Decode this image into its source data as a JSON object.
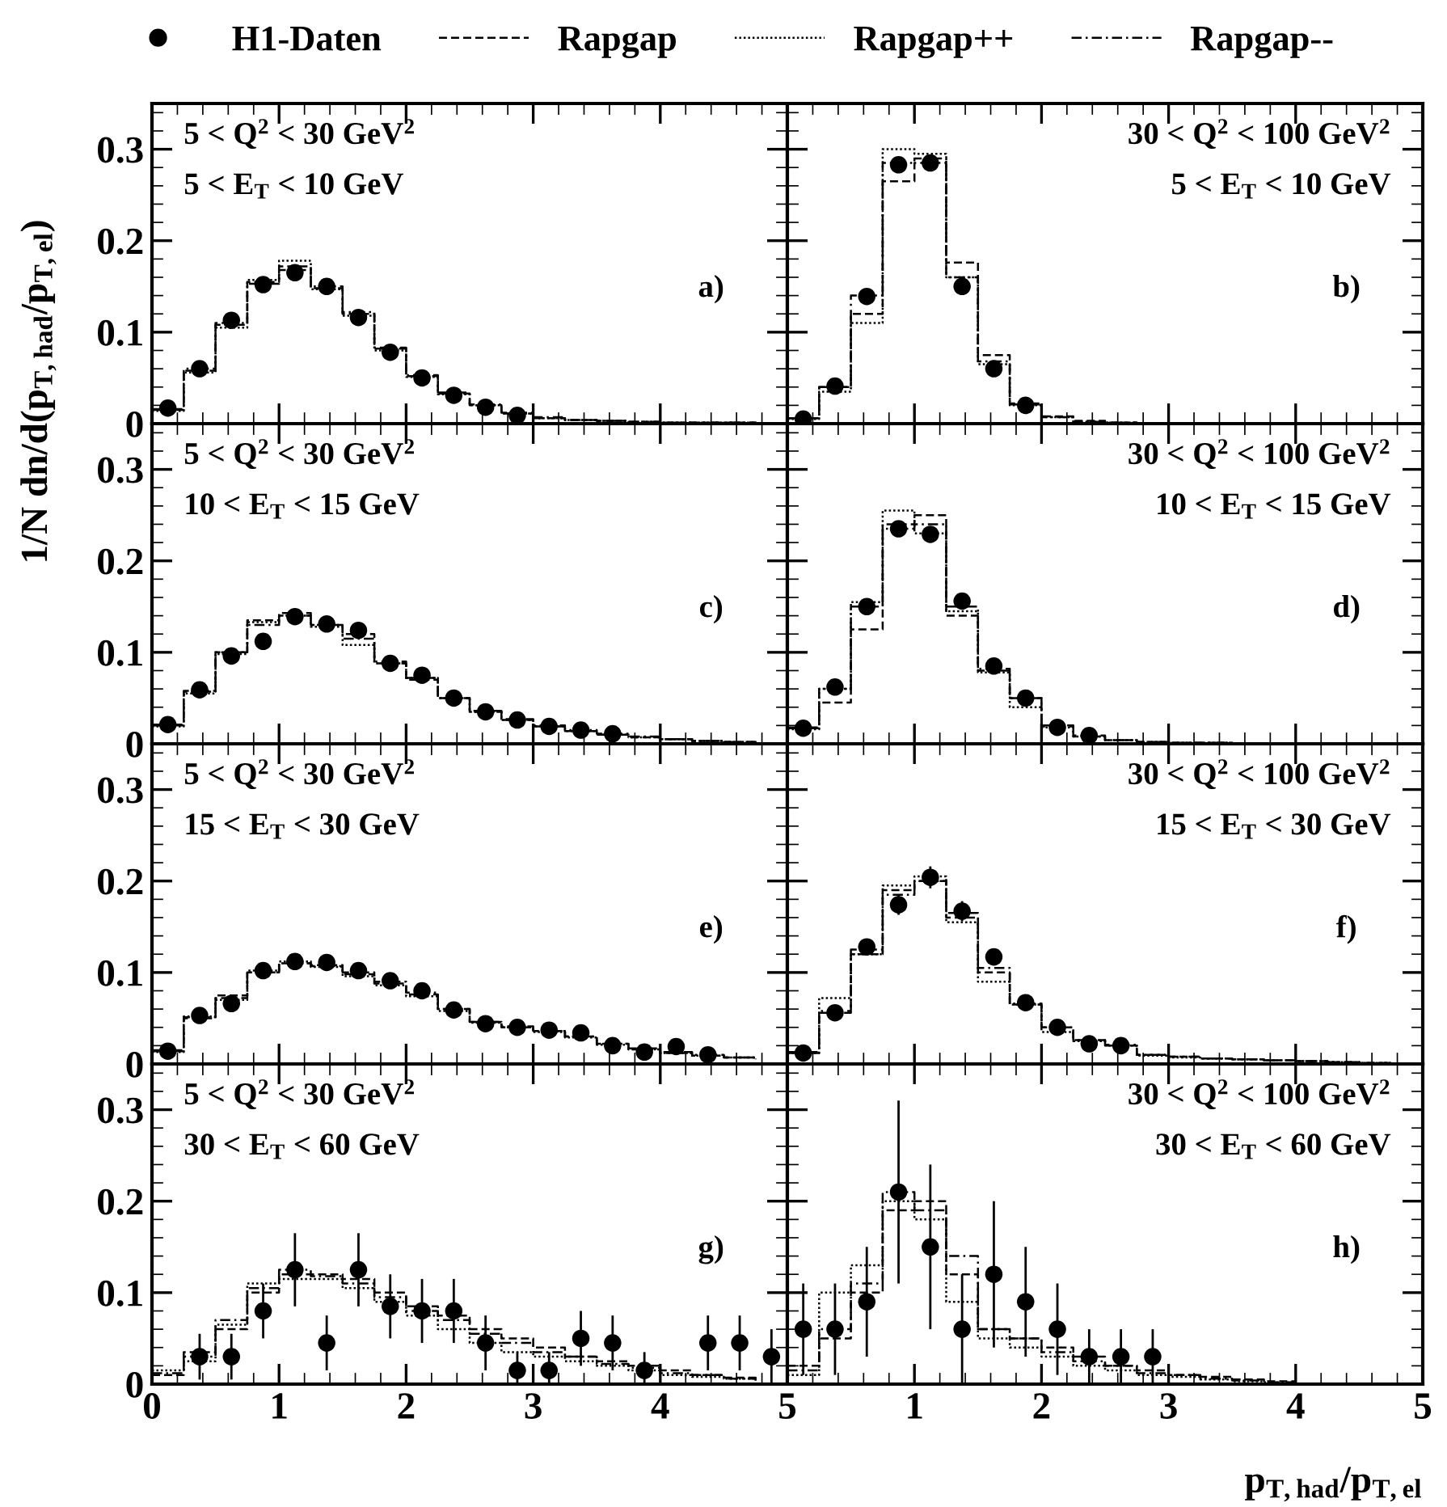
{
  "chart_data": [
    {
      "type": "step",
      "ylabel": "1/N dn/d(p$_{T,had}$/p$_{T,el}$)",
      "legend": "top",
      "annotations": [
        "5 < Q$^{2}$ < 30 GeV$^{2}$",
        "5 < E$_{T}$ < 10 GeV",
        "a)"
      ],
      "xlim": [
        0,
        5
      ],
      "ylim": [
        0,
        0.35
      ],
      "xticks": [
        0,
        1,
        2,
        3,
        4,
        5
      ],
      "yticks": [
        0,
        0.1,
        0.2,
        0.3
      ],
      "tick_labels": "y",
      "grid": false,
      "series": [
        {
          "name": "H1-Daten",
          "type": "scatter",
          "marker": "circle",
          "color": "#000000",
          "x": [
            0.125,
            0.375,
            0.625,
            0.875,
            1.125,
            1.375,
            1.625,
            1.875,
            2.125,
            2.375,
            2.625,
            2.875
          ],
          "values": [
            0.017,
            0.06,
            0.113,
            0.152,
            0.165,
            0.15,
            0.116,
            0.078,
            0.05,
            0.031,
            0.018,
            0.009
          ]
        },
        {
          "name": "Rapgap",
          "type": "step",
          "line_style": "dashed",
          "color": "#000000",
          "x": [
            0,
            0.25,
            0.5,
            0.75,
            1,
            1.25,
            1.5,
            1.75,
            2,
            2.25,
            2.5,
            2.75,
            3,
            3.25,
            3.5,
            3.75,
            4,
            4.25,
            4.5,
            4.75
          ],
          "values": [
            0.015,
            0.058,
            0.108,
            0.155,
            0.172,
            0.148,
            0.12,
            0.082,
            0.052,
            0.033,
            0.02,
            0.011,
            0.006,
            0.004,
            0.003,
            0.002,
            0.001,
            0.001,
            0.001,
            0.0
          ]
        },
        {
          "name": "Rapgap++",
          "type": "step",
          "line_style": "dotted",
          "color": "#000000",
          "x": [
            0,
            0.25,
            0.5,
            0.75,
            1,
            1.25,
            1.5,
            1.75,
            2,
            2.25,
            2.5,
            2.75,
            3,
            3.25,
            3.5,
            3.75,
            4,
            4.25,
            4.5,
            4.75
          ],
          "values": [
            0.014,
            0.056,
            0.105,
            0.157,
            0.178,
            0.147,
            0.118,
            0.08,
            0.051,
            0.032,
            0.02,
            0.011,
            0.006,
            0.004,
            0.003,
            0.002,
            0.001,
            0.001,
            0.001,
            0.0
          ]
        },
        {
          "name": "Rapgap--",
          "type": "step",
          "line_style": "dashdot",
          "color": "#000000",
          "x": [
            0,
            0.25,
            0.5,
            0.75,
            1,
            1.25,
            1.5,
            1.75,
            2,
            2.25,
            2.5,
            2.75,
            3,
            3.25,
            3.5,
            3.75,
            4,
            4.25,
            4.5,
            4.75
          ],
          "values": [
            0.016,
            0.06,
            0.11,
            0.153,
            0.168,
            0.15,
            0.122,
            0.083,
            0.053,
            0.034,
            0.021,
            0.012,
            0.007,
            0.004,
            0.003,
            0.002,
            0.001,
            0.001,
            0.001,
            0.0
          ]
        }
      ]
    },
    {
      "type": "step",
      "annotations": [
        "30 < Q$^{2}$ < 100 GeV$^{2}$",
        "5 < E$_{T}$ < 10 GeV",
        "b)"
      ],
      "xlim": [
        0,
        5
      ],
      "ylim": [
        0,
        0.35
      ],
      "xticks": [
        0,
        1,
        2,
        3,
        4,
        5
      ],
      "yticks": [
        0,
        0.1,
        0.2,
        0.3
      ],
      "tick_labels": false,
      "grid": false,
      "series": [
        {
          "type": "scatter",
          "marker": "circle",
          "color": "#000000",
          "x": [
            0.125,
            0.375,
            0.625,
            0.875,
            1.125,
            1.375,
            1.625,
            1.875
          ],
          "values": [
            0.005,
            0.041,
            0.139,
            0.283,
            0.285,
            0.15,
            0.06,
            0.02
          ]
        },
        {
          "type": "step",
          "line_style": "dashed",
          "color": "#000000",
          "x": [
            0,
            0.25,
            0.5,
            0.75,
            1,
            1.25,
            1.5,
            1.75,
            2,
            2.25,
            2.5,
            2.75,
            3,
            3.25,
            3.5,
            3.75,
            4,
            4.25,
            4.5,
            4.75
          ],
          "values": [
            0.006,
            0.04,
            0.12,
            0.265,
            0.285,
            0.176,
            0.075,
            0.022,
            0.008,
            0.003,
            0.001,
            0,
            0,
            0,
            0,
            0,
            0,
            0,
            0,
            0
          ]
        },
        {
          "type": "step",
          "line_style": "dotted",
          "color": "#000000",
          "x": [
            0,
            0.25,
            0.5,
            0.75,
            1,
            1.25,
            1.5,
            1.75,
            2,
            2.25,
            2.5,
            2.75,
            3,
            3.25,
            3.5,
            3.75,
            4,
            4.25,
            4.5,
            4.75
          ],
          "values": [
            0.005,
            0.035,
            0.11,
            0.3,
            0.295,
            0.16,
            0.065,
            0.02,
            0.007,
            0.002,
            0.001,
            0,
            0,
            0,
            0,
            0,
            0,
            0,
            0,
            0
          ]
        },
        {
          "type": "step",
          "line_style": "dashdot",
          "color": "#000000",
          "x": [
            0,
            0.25,
            0.5,
            0.75,
            1,
            1.25,
            1.5,
            1.75,
            2,
            2.25,
            2.5,
            2.75,
            3,
            3.25,
            3.5,
            3.75,
            4,
            4.25,
            4.5,
            4.75
          ],
          "values": [
            0.006,
            0.04,
            0.14,
            0.285,
            0.29,
            0.16,
            0.068,
            0.021,
            0.007,
            0.002,
            0.001,
            0,
            0,
            0,
            0,
            0,
            0,
            0,
            0,
            0
          ]
        }
      ]
    },
    {
      "type": "step",
      "annotations": [
        "5 < Q$^{2}$ < 30 GeV$^{2}$",
        "10 < E$_{T}$ < 15 GeV",
        "c)"
      ],
      "xlim": [
        0,
        5
      ],
      "ylim": [
        0,
        0.35
      ],
      "xticks": [
        0,
        1,
        2,
        3,
        4,
        5
      ],
      "yticks": [
        0,
        0.1,
        0.2,
        0.3
      ],
      "tick_labels": "y",
      "grid": false,
      "series": [
        {
          "type": "scatter",
          "marker": "circle",
          "color": "#000000",
          "x": [
            0.125,
            0.375,
            0.625,
            0.875,
            1.125,
            1.375,
            1.625,
            1.875,
            2.125,
            2.375,
            2.625,
            2.875,
            3.125,
            3.375,
            3.625
          ],
          "values": [
            0.021,
            0.059,
            0.096,
            0.112,
            0.139,
            0.131,
            0.124,
            0.088,
            0.075,
            0.05,
            0.035,
            0.026,
            0.019,
            0.015,
            0.011
          ]
        },
        {
          "type": "step",
          "line_style": "dashed",
          "color": "#000000",
          "x": [
            0,
            0.25,
            0.5,
            0.75,
            1,
            1.25,
            1.5,
            1.75,
            2,
            2.25,
            2.5,
            2.75,
            3,
            3.25,
            3.5,
            3.75,
            4,
            4.25,
            4.5,
            4.75
          ],
          "values": [
            0.02,
            0.057,
            0.1,
            0.135,
            0.143,
            0.13,
            0.12,
            0.088,
            0.07,
            0.05,
            0.035,
            0.026,
            0.019,
            0.014,
            0.01,
            0.007,
            0.005,
            0.003,
            0.002,
            0.001
          ]
        },
        {
          "type": "step",
          "line_style": "dotted",
          "color": "#000000",
          "x": [
            0,
            0.25,
            0.5,
            0.75,
            1,
            1.25,
            1.5,
            1.75,
            2,
            2.25,
            2.5,
            2.75,
            3,
            3.25,
            3.5,
            3.75,
            4,
            4.25,
            4.5,
            4.75
          ],
          "values": [
            0.019,
            0.055,
            0.098,
            0.133,
            0.14,
            0.128,
            0.108,
            0.088,
            0.072,
            0.05,
            0.035,
            0.026,
            0.019,
            0.014,
            0.01,
            0.007,
            0.005,
            0.003,
            0.002,
            0.001
          ]
        },
        {
          "type": "step",
          "line_style": "dashdot",
          "color": "#000000",
          "x": [
            0,
            0.25,
            0.5,
            0.75,
            1,
            1.25,
            1.5,
            1.75,
            2,
            2.25,
            2.5,
            2.75,
            3,
            3.25,
            3.5,
            3.75,
            4,
            4.25,
            4.5,
            4.75
          ],
          "values": [
            0.021,
            0.058,
            0.1,
            0.13,
            0.14,
            0.13,
            0.115,
            0.09,
            0.072,
            0.05,
            0.036,
            0.027,
            0.02,
            0.015,
            0.011,
            0.008,
            0.005,
            0.003,
            0.002,
            0.001
          ]
        }
      ]
    },
    {
      "type": "step",
      "annotations": [
        "30 < Q$^{2}$ < 100 GeV$^{2}$",
        "10 < E$_{T}$ < 15 GeV",
        "d)"
      ],
      "xlim": [
        0,
        5
      ],
      "ylim": [
        0,
        0.35
      ],
      "xticks": [
        0,
        1,
        2,
        3,
        4,
        5
      ],
      "yticks": [
        0,
        0.1,
        0.2,
        0.3
      ],
      "tick_labels": false,
      "grid": false,
      "series": [
        {
          "type": "scatter",
          "marker": "circle",
          "color": "#000000",
          "x": [
            0.125,
            0.375,
            0.625,
            0.875,
            1.125,
            1.375,
            1.625,
            1.875,
            2.125,
            2.375
          ],
          "values": [
            0.017,
            0.062,
            0.15,
            0.235,
            0.229,
            0.156,
            0.085,
            0.05,
            0.018,
            0.009
          ]
        },
        {
          "type": "step",
          "line_style": "dashed",
          "color": "#000000",
          "x": [
            0,
            0.25,
            0.5,
            0.75,
            1,
            1.25,
            1.5,
            1.75,
            2,
            2.25,
            2.5,
            2.75,
            3,
            3.25,
            3.5,
            3.75,
            4,
            4.25,
            4.5,
            4.75
          ],
          "values": [
            0.017,
            0.045,
            0.125,
            0.24,
            0.25,
            0.14,
            0.08,
            0.05,
            0.02,
            0.008,
            0.004,
            0.002,
            0.001,
            0.001,
            0,
            0,
            0,
            0,
            0,
            0
          ]
        },
        {
          "type": "step",
          "line_style": "dotted",
          "color": "#000000",
          "x": [
            0,
            0.25,
            0.5,
            0.75,
            1,
            1.25,
            1.5,
            1.75,
            2,
            2.25,
            2.5,
            2.75,
            3,
            3.25,
            3.5,
            3.75,
            4,
            4.25,
            4.5,
            4.75
          ],
          "values": [
            0.016,
            0.06,
            0.155,
            0.255,
            0.23,
            0.145,
            0.078,
            0.04,
            0.018,
            0.008,
            0.004,
            0.002,
            0.001,
            0.001,
            0,
            0,
            0,
            0,
            0,
            0
          ]
        },
        {
          "type": "step",
          "line_style": "dashdot",
          "color": "#000000",
          "x": [
            0,
            0.25,
            0.5,
            0.75,
            1,
            1.25,
            1.5,
            1.75,
            2,
            2.25,
            2.5,
            2.75,
            3,
            3.25,
            3.5,
            3.75,
            4,
            4.25,
            4.5,
            4.75
          ],
          "values": [
            0.018,
            0.06,
            0.15,
            0.235,
            0.24,
            0.15,
            0.082,
            0.05,
            0.019,
            0.009,
            0.004,
            0.002,
            0.001,
            0.001,
            0,
            0,
            0,
            0,
            0,
            0
          ]
        }
      ]
    },
    {
      "type": "step",
      "annotations": [
        "5 < Q$^{2}$ < 30 GeV$^{2}$",
        "15 < E$_{T}$ < 30 GeV",
        "e)"
      ],
      "xlim": [
        0,
        5
      ],
      "ylim": [
        0,
        0.35
      ],
      "xticks": [
        0,
        1,
        2,
        3,
        4,
        5
      ],
      "yticks": [
        0,
        0.1,
        0.2,
        0.3
      ],
      "tick_labels": "y",
      "grid": false,
      "series": [
        {
          "type": "scatter",
          "marker": "circle",
          "color": "#000000",
          "x": [
            0.125,
            0.375,
            0.625,
            0.875,
            1.125,
            1.375,
            1.625,
            1.875,
            2.125,
            2.375,
            2.625,
            2.875,
            3.125,
            3.375,
            3.625,
            3.875,
            4.125,
            4.375
          ],
          "values": [
            0.014,
            0.053,
            0.066,
            0.102,
            0.112,
            0.111,
            0.102,
            0.091,
            0.08,
            0.059,
            0.044,
            0.04,
            0.037,
            0.034,
            0.02,
            0.013,
            0.019,
            0.01
          ]
        },
        {
          "type": "step",
          "line_style": "dashed",
          "color": "#000000",
          "x": [
            0,
            0.25,
            0.5,
            0.75,
            1,
            1.25,
            1.5,
            1.75,
            2,
            2.25,
            2.5,
            2.75,
            3,
            3.25,
            3.5,
            3.75,
            4,
            4.25,
            4.5,
            4.75
          ],
          "values": [
            0.014,
            0.05,
            0.075,
            0.1,
            0.11,
            0.108,
            0.098,
            0.088,
            0.076,
            0.06,
            0.046,
            0.04,
            0.036,
            0.03,
            0.022,
            0.016,
            0.012,
            0.009,
            0.007,
            0.005
          ]
        },
        {
          "type": "step",
          "line_style": "dotted",
          "color": "#000000",
          "x": [
            0,
            0.25,
            0.5,
            0.75,
            1,
            1.25,
            1.5,
            1.75,
            2,
            2.25,
            2.5,
            2.75,
            3,
            3.25,
            3.5,
            3.75,
            4,
            4.25,
            4.5,
            4.75
          ],
          "values": [
            0.013,
            0.052,
            0.07,
            0.102,
            0.112,
            0.106,
            0.096,
            0.086,
            0.074,
            0.058,
            0.045,
            0.04,
            0.035,
            0.029,
            0.021,
            0.016,
            0.012,
            0.009,
            0.007,
            0.005
          ]
        },
        {
          "type": "step",
          "line_style": "dashdot",
          "color": "#000000",
          "x": [
            0,
            0.25,
            0.5,
            0.75,
            1,
            1.25,
            1.5,
            1.75,
            2,
            2.25,
            2.5,
            2.75,
            3,
            3.25,
            3.5,
            3.75,
            4,
            4.25,
            4.5,
            4.75
          ],
          "values": [
            0.015,
            0.051,
            0.072,
            0.1,
            0.11,
            0.107,
            0.1,
            0.09,
            0.078,
            0.06,
            0.046,
            0.041,
            0.036,
            0.03,
            0.022,
            0.017,
            0.013,
            0.01,
            0.007,
            0.005
          ]
        }
      ]
    },
    {
      "type": "step",
      "annotations": [
        "30 < Q$^{2}$ < 100 GeV$^{2}$",
        "15 < E$_{T}$ < 30 GeV",
        "f)"
      ],
      "xlim": [
        0,
        5
      ],
      "ylim": [
        0,
        0.35
      ],
      "xticks": [
        0,
        1,
        2,
        3,
        4,
        5
      ],
      "yticks": [
        0,
        0.1,
        0.2,
        0.3
      ],
      "tick_labels": false,
      "grid": false,
      "series": [
        {
          "type": "scatter",
          "marker": "circle",
          "color": "#000000",
          "x": [
            0.125,
            0.375,
            0.625,
            0.875,
            1.125,
            1.375,
            1.625,
            1.875,
            2.125,
            2.375,
            2.625
          ],
          "values": [
            0.012,
            0.056,
            0.128,
            0.174,
            0.204,
            0.167,
            0.117,
            0.067,
            0.04,
            0.022,
            0.02
          ],
          "errors": [
            0.005,
            0.006,
            0.009,
            0.011,
            0.012,
            0.011,
            0.009,
            0.007,
            0.005,
            0.004,
            0.004
          ]
        },
        {
          "type": "step",
          "line_style": "dashed",
          "color": "#000000",
          "x": [
            0,
            0.25,
            0.5,
            0.75,
            1,
            1.25,
            1.5,
            1.75,
            2,
            2.25,
            2.5,
            2.75,
            3,
            3.25,
            3.5,
            3.75,
            4,
            4.25,
            4.5,
            4.75
          ],
          "values": [
            0.012,
            0.056,
            0.12,
            0.19,
            0.2,
            0.16,
            0.1,
            0.065,
            0.04,
            0.026,
            0.02,
            0.01,
            0.008,
            0.006,
            0.005,
            0.004,
            0.003,
            0.002,
            0.001,
            0.001
          ]
        },
        {
          "type": "step",
          "line_style": "dotted",
          "color": "#000000",
          "x": [
            0,
            0.25,
            0.5,
            0.75,
            1,
            1.25,
            1.5,
            1.75,
            2,
            2.25,
            2.5,
            2.75,
            3,
            3.25,
            3.5,
            3.75,
            4,
            4.25,
            4.5,
            4.75
          ],
          "values": [
            0.012,
            0.072,
            0.12,
            0.195,
            0.205,
            0.155,
            0.09,
            0.065,
            0.035,
            0.025,
            0.02,
            0.009,
            0.007,
            0.006,
            0.005,
            0.004,
            0.003,
            0.002,
            0.001,
            0.001
          ]
        },
        {
          "type": "step",
          "line_style": "dashdot",
          "color": "#000000",
          "x": [
            0,
            0.25,
            0.5,
            0.75,
            1,
            1.25,
            1.5,
            1.75,
            2,
            2.25,
            2.5,
            2.75,
            3,
            3.25,
            3.5,
            3.75,
            4,
            4.25,
            4.5,
            4.75
          ],
          "values": [
            0.013,
            0.058,
            0.125,
            0.185,
            0.2,
            0.165,
            0.105,
            0.066,
            0.04,
            0.026,
            0.021,
            0.01,
            0.008,
            0.006,
            0.005,
            0.004,
            0.003,
            0.002,
            0.001,
            0.001
          ]
        }
      ]
    },
    {
      "type": "step",
      "annotations": [
        "5 < Q$^{2}$ < 30 GeV$^{2}$",
        "30 < E$_{T}$ < 60 GeV",
        "g)"
      ],
      "xlim": [
        0,
        5
      ],
      "ylim": [
        0,
        0.35
      ],
      "xticks": [
        0,
        1,
        2,
        3,
        4,
        5
      ],
      "yticks": [
        0,
        0.1,
        0.2,
        0.3
      ],
      "grid": false,
      "series": [
        {
          "type": "scatter",
          "marker": "circle",
          "color": "#000000",
          "x": [
            0.375,
            0.625,
            0.875,
            1.125,
            1.375,
            1.625,
            1.875,
            2.125,
            2.375,
            2.625,
            2.875,
            3.125,
            3.375,
            3.625,
            3.875,
            4.375,
            4.625,
            4.875
          ],
          "values": [
            0.03,
            0.03,
            0.08,
            0.125,
            0.045,
            0.125,
            0.085,
            0.08,
            0.08,
            0.045,
            0.015,
            0.015,
            0.05,
            0.045,
            0.015,
            0.045,
            0.045,
            0.03
          ],
          "errors": [
            0.025,
            0.025,
            0.03,
            0.04,
            0.03,
            0.04,
            0.035,
            0.035,
            0.035,
            0.03,
            0.02,
            0.02,
            0.03,
            0.03,
            0.02,
            0.03,
            0.03,
            0.03
          ]
        },
        {
          "type": "step",
          "line_style": "dashed",
          "color": "#000000",
          "x": [
            0,
            0.25,
            0.5,
            0.75,
            1,
            1.25,
            1.5,
            1.75,
            2,
            2.25,
            2.5,
            2.75,
            3,
            3.25,
            3.5,
            3.75,
            4,
            4.25,
            4.5,
            4.75
          ],
          "values": [
            0.01,
            0.035,
            0.06,
            0.1,
            0.12,
            0.12,
            0.115,
            0.1,
            0.085,
            0.075,
            0.06,
            0.05,
            0.04,
            0.03,
            0.025,
            0.02,
            0.015,
            0.01,
            0.007,
            0.005
          ]
        },
        {
          "type": "step",
          "line_style": "dotted",
          "color": "#000000",
          "x": [
            0,
            0.25,
            0.5,
            0.75,
            1,
            1.25,
            1.5,
            1.75,
            2,
            2.25,
            2.5,
            2.75,
            3,
            3.25,
            3.5,
            3.75,
            4,
            4.25,
            4.5,
            4.75
          ],
          "values": [
            0.015,
            0.025,
            0.065,
            0.11,
            0.115,
            0.115,
            0.105,
            0.09,
            0.075,
            0.06,
            0.045,
            0.035,
            0.03,
            0.025,
            0.02,
            0.015,
            0.01,
            0.008,
            0.006,
            0.004
          ]
        },
        {
          "type": "step",
          "line_style": "dashdot",
          "color": "#000000",
          "x": [
            0,
            0.25,
            0.5,
            0.75,
            1,
            1.25,
            1.5,
            1.75,
            2,
            2.25,
            2.5,
            2.75,
            3,
            3.25,
            3.5,
            3.75,
            4,
            4.25,
            4.5,
            4.75
          ],
          "values": [
            0.012,
            0.03,
            0.07,
            0.105,
            0.125,
            0.118,
            0.11,
            0.095,
            0.08,
            0.07,
            0.055,
            0.045,
            0.035,
            0.03,
            0.022,
            0.018,
            0.012,
            0.01,
            0.006,
            0.004
          ]
        }
      ]
    },
    {
      "type": "step",
      "xlabel": "p$_{T,had}$/p$_{T,el}$",
      "annotations": [
        "30 < Q$^{2}$ < 100 GeV$^{2}$",
        "30 < E$_{T}$ < 60 GeV",
        "h)"
      ],
      "xlim": [
        0,
        5
      ],
      "ylim": [
        0,
        0.35
      ],
      "xticks": [
        {
          "value": 0,
          "label": null
        },
        1,
        2,
        3,
        4,
        5
      ],
      "yticks": [
        0,
        0.1,
        0.2,
        0.3
      ],
      "tick_labels": "x",
      "grid": false,
      "series": [
        {
          "type": "scatter",
          "marker": "circle",
          "color": "#000000",
          "x": [
            0.125,
            0.375,
            0.625,
            0.875,
            1.125,
            1.375,
            1.625,
            1.875,
            2.125,
            2.375,
            2.625,
            2.875
          ],
          "values": [
            0.06,
            0.06,
            0.09,
            0.21,
            0.15,
            0.06,
            0.12,
            0.09,
            0.06,
            0.03,
            0.03,
            0.03
          ],
          "errors": [
            0.05,
            0.05,
            0.06,
            0.1,
            0.09,
            0.06,
            0.08,
            0.06,
            0.05,
            0.03,
            0.03,
            0.03
          ]
        },
        {
          "type": "step",
          "line_style": "dashed",
          "color": "#000000",
          "x": [
            0,
            0.25,
            0.5,
            0.75,
            1,
            1.25,
            1.5,
            1.75,
            2,
            2.25,
            2.5,
            2.75,
            3,
            3.25,
            3.5,
            3.75,
            4,
            4.25,
            4.5,
            4.75
          ],
          "values": [
            0.02,
            0.05,
            0.1,
            0.19,
            0.2,
            0.12,
            0.06,
            0.05,
            0.04,
            0.03,
            0.02,
            0.015,
            0.01,
            0.008,
            0.005,
            0.003,
            0,
            0,
            0,
            0
          ]
        },
        {
          "type": "step",
          "line_style": "dotted",
          "color": "#000000",
          "x": [
            0,
            0.25,
            0.5,
            0.75,
            1,
            1.25,
            1.5,
            1.75,
            2,
            2.25,
            2.5,
            2.75,
            3,
            3.25,
            3.5,
            3.75,
            4,
            4.25,
            4.5,
            4.75
          ],
          "values": [
            0.01,
            0.1,
            0.13,
            0.2,
            0.18,
            0.09,
            0.05,
            0.04,
            0.03,
            0.02,
            0.015,
            0.01,
            0.008,
            0.005,
            0.003,
            0.002,
            0,
            0,
            0,
            0
          ]
        },
        {
          "type": "step",
          "line_style": "dashdot",
          "color": "#000000",
          "x": [
            0,
            0.25,
            0.5,
            0.75,
            1,
            1.25,
            1.5,
            1.75,
            2,
            2.25,
            2.5,
            2.75,
            3,
            3.25,
            3.5,
            3.75,
            4,
            4.25,
            4.5,
            4.75
          ],
          "values": [
            0.015,
            0.06,
            0.11,
            0.21,
            0.19,
            0.14,
            0.06,
            0.05,
            0.035,
            0.025,
            0.02,
            0.012,
            0.01,
            0.006,
            0.004,
            0.002,
            0,
            0,
            0,
            0
          ]
        }
      ]
    }
  ]
}
